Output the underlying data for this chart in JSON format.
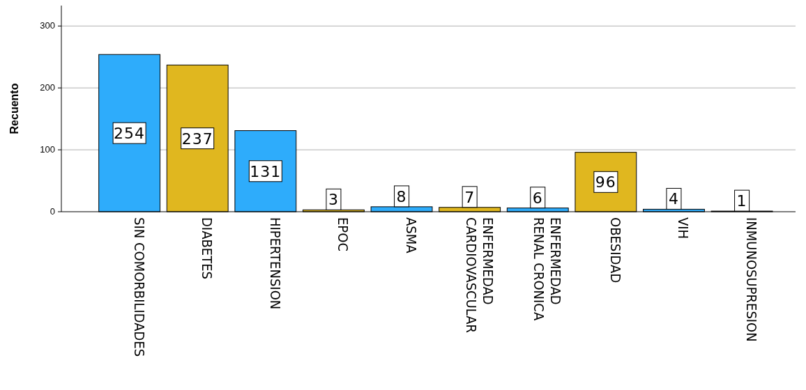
{
  "chart_data": {
    "type": "bar",
    "ylabel": "Recuento",
    "categories": [
      "SIN COMORBILIDADES",
      "DIABETES",
      "HIPERTENSION",
      "EPOC",
      "ASMA",
      "ENFERMEDAD CARDIOVASCULAR",
      "ENFERMEDAD RENAL CRONICA",
      "OBESIDAD",
      "VIH",
      "INMUNOSUPRESION"
    ],
    "values": [
      254,
      237,
      131,
      3,
      8,
      7,
      6,
      96,
      4,
      1
    ],
    "colors": [
      "#2eacfb",
      "#e0b71f",
      "#2eacfb",
      "#e0b71f",
      "#2eacfb",
      "#e0b71f",
      "#2eacfb",
      "#e0b71f",
      "#2eacfb",
      "#e0b71f"
    ],
    "ylim": [
      0,
      333
    ],
    "yticks": [
      0,
      100,
      200,
      300
    ],
    "grid": "y",
    "data_labels": true
  }
}
